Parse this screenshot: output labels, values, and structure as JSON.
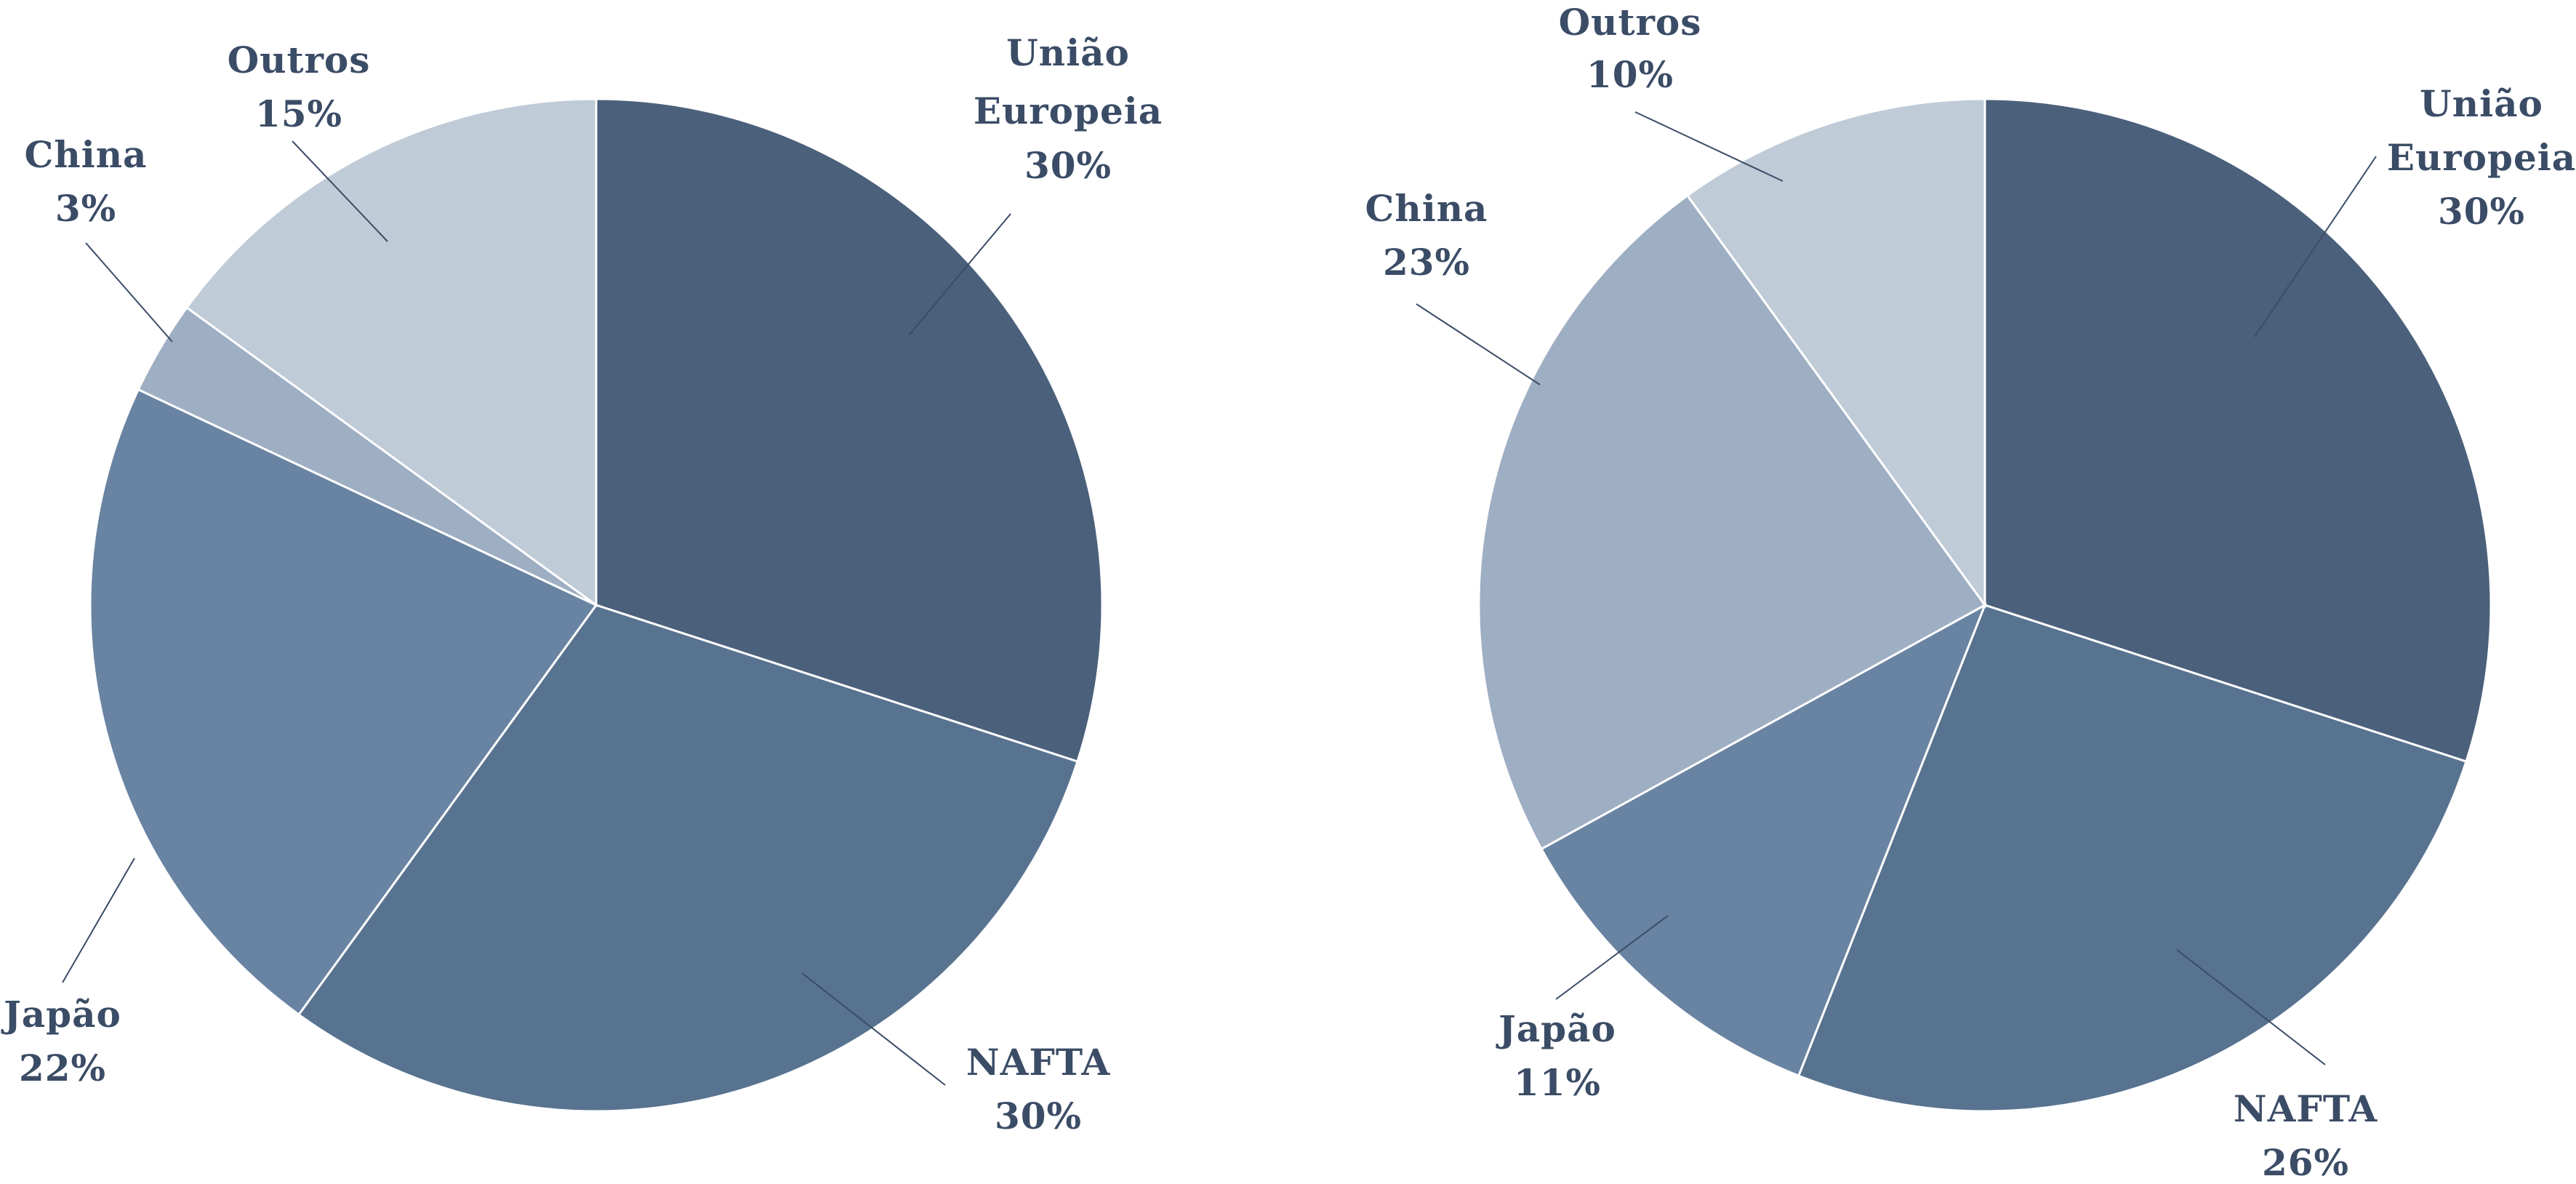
{
  "colors": {
    "União Europeia": "#4b607b",
    "NAFTA": "#587390",
    "Japão": "#6983a2",
    "China": "#9eaec3",
    "Outros": "#bfcbd7",
    "text": "#3b4c66"
  },
  "chart_data": [
    {
      "type": "pie",
      "title": "",
      "start": "top",
      "direction": "clockwise",
      "slices": [
        {
          "label": [
            "União",
            "Europeia"
          ],
          "value": 30,
          "value_label": "30%"
        },
        {
          "label": [
            "NAFTA"
          ],
          "value": 30,
          "value_label": "30%"
        },
        {
          "label": [
            "Japão"
          ],
          "value": 22,
          "value_label": "22%"
        },
        {
          "label": [
            "China"
          ],
          "value": 3,
          "value_label": "3%"
        },
        {
          "label": [
            "Outros"
          ],
          "value": 15,
          "value_label": "15%"
        }
      ]
    },
    {
      "type": "pie",
      "title": "",
      "start": "top",
      "direction": "clockwise",
      "slices": [
        {
          "label": [
            "União",
            "Europeia"
          ],
          "value": 30,
          "value_label": "30%"
        },
        {
          "label": [
            "NAFTA"
          ],
          "value": 26,
          "value_label": "26%"
        },
        {
          "label": [
            "Japão"
          ],
          "value": 11,
          "value_label": "11%"
        },
        {
          "label": [
            "China"
          ],
          "value": 23,
          "value_label": "23%"
        },
        {
          "label": [
            "Outros"
          ],
          "value": 10,
          "value_label": "10%"
        }
      ]
    }
  ]
}
